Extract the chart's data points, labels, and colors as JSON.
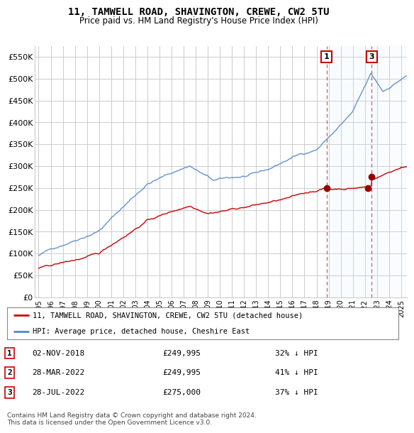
{
  "title": "11, TAMWELL ROAD, SHAVINGTON, CREWE, CW2 5TU",
  "subtitle": "Price paid vs. HM Land Registry's House Price Index (HPI)",
  "hpi_label": "HPI: Average price, detached house, Cheshire East",
  "property_label": "11, TAMWELL ROAD, SHAVINGTON, CREWE, CW2 5TU (detached house)",
  "hpi_color": "#5588cc",
  "hpi_fill_color": "#ddeeff",
  "property_color": "#cc0000",
  "annotation_color": "#cc0000",
  "dashed_color": "#cc3333",
  "ylim": [
    0,
    575000
  ],
  "yticks": [
    0,
    50000,
    100000,
    150000,
    200000,
    250000,
    300000,
    350000,
    400000,
    450000,
    500000,
    550000
  ],
  "ytick_labels": [
    "£0",
    "£50K",
    "£100K",
    "£150K",
    "£200K",
    "£250K",
    "£300K",
    "£350K",
    "£400K",
    "£450K",
    "£500K",
    "£550K"
  ],
  "xlim_start": 1994.7,
  "xlim_end": 2025.5,
  "xticks": [
    1995,
    1996,
    1997,
    1998,
    1999,
    2000,
    2001,
    2002,
    2003,
    2004,
    2005,
    2006,
    2007,
    2008,
    2009,
    2010,
    2011,
    2012,
    2013,
    2014,
    2015,
    2016,
    2017,
    2018,
    2019,
    2020,
    2021,
    2022,
    2023,
    2024,
    2025
  ],
  "sale1_x": 2018.83,
  "sale1_y": 249995,
  "sale1_label": "1",
  "sale2_x": 2022.24,
  "sale2_y": 249995,
  "sale2_label": "2",
  "sale3_x": 2022.57,
  "sale3_y": 275000,
  "sale3_label": "3",
  "table_rows": [
    {
      "num": "1",
      "date": "02-NOV-2018",
      "price": "£249,995",
      "diff": "32% ↓ HPI"
    },
    {
      "num": "2",
      "date": "28-MAR-2022",
      "price": "£249,995",
      "diff": "41% ↓ HPI"
    },
    {
      "num": "3",
      "date": "28-JUL-2022",
      "price": "£275,000",
      "diff": "37% ↓ HPI"
    }
  ],
  "footer": "Contains HM Land Registry data © Crown copyright and database right 2024.\nThis data is licensed under the Open Government Licence v3.0.",
  "bg_color": "#ffffff",
  "grid_color": "#cccccc"
}
